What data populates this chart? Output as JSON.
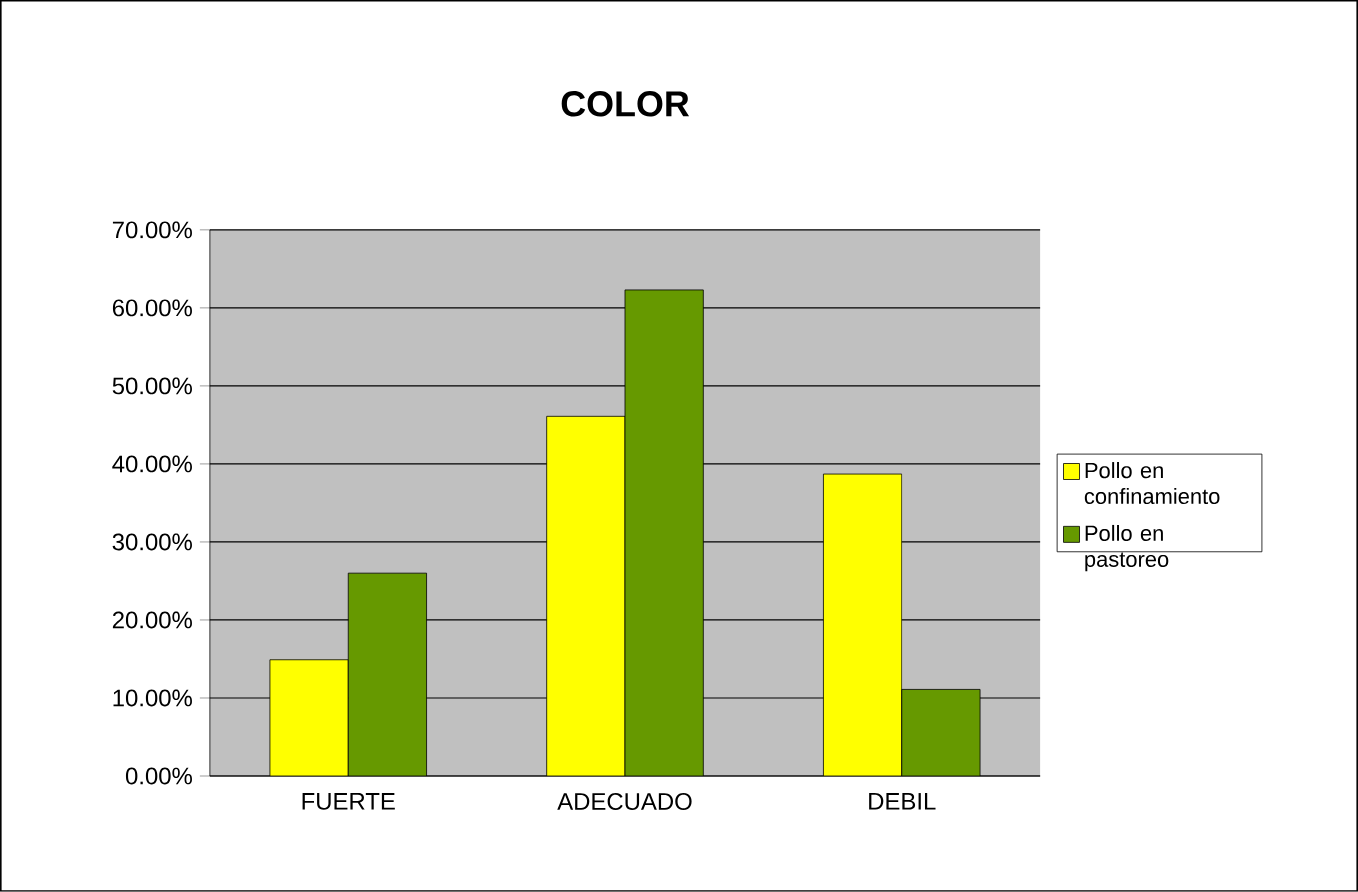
{
  "chart_data": {
    "type": "bar",
    "title": "COLOR",
    "categories": [
      "FUERTE",
      "ADECUADO",
      "DEBIL"
    ],
    "series": [
      {
        "name": "Pollo en confinamiento",
        "color": "#ffff00",
        "values": [
          14.9,
          46.1,
          38.7
        ]
      },
      {
        "name": "Pollo en pastoreo",
        "color": "#669900",
        "values": [
          26.0,
          62.3,
          11.1
        ]
      }
    ],
    "ylim": [
      0,
      70
    ],
    "yticks": [
      {
        "value": 0,
        "label": "0.00%"
      },
      {
        "value": 10,
        "label": "10.00%"
      },
      {
        "value": 20,
        "label": "20.00%"
      },
      {
        "value": 30,
        "label": "30.00%"
      },
      {
        "value": 40,
        "label": "40.00%"
      },
      {
        "value": 50,
        "label": "50.00%"
      },
      {
        "value": 60,
        "label": "60.00%"
      },
      {
        "value": 70,
        "label": "70.00%"
      }
    ],
    "grid": "y",
    "legend": "right"
  }
}
